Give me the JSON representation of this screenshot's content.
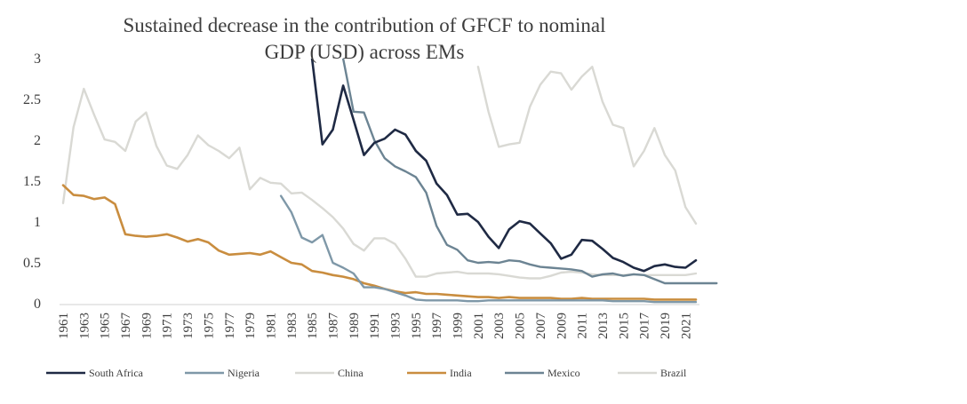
{
  "chart_data": {
    "type": "line",
    "title_line1": "Sustained decrease in the contribution of GFCF to nominal",
    "title_line2": "GDP (USD) across EMs",
    "xlabel": "",
    "ylabel": "",
    "ylim": [
      0,
      3
    ],
    "y_ticks": [
      "0",
      "0.5",
      "1",
      "1.5",
      "2",
      "2.5",
      "3"
    ],
    "x_start": 1961,
    "x_end": 2022,
    "x_tick_labels": [
      "1961",
      "1963",
      "1965",
      "1967",
      "1969",
      "1971",
      "1973",
      "1975",
      "1977",
      "1979",
      "1981",
      "1983",
      "1985",
      "1987",
      "1989",
      "1991",
      "1993",
      "1995",
      "1997",
      "1999",
      "2001",
      "2003",
      "2005",
      "2007",
      "2009",
      "2011",
      "2013",
      "2015",
      "2017",
      "2019",
      "2021"
    ],
    "legend_position": "bottom",
    "series": [
      {
        "name": "South Africa",
        "color": "#1f2a44",
        "width": 2.6,
        "start": 1985,
        "values": [
          3.0,
          1.95,
          2.13,
          2.67,
          2.25,
          1.82,
          1.97,
          2.02,
          2.13,
          2.07,
          1.87,
          1.75,
          1.47,
          1.33,
          1.09,
          1.1,
          1.0,
          0.82,
          0.68,
          0.91,
          1.01,
          0.98,
          0.86,
          0.74,
          0.55,
          0.6,
          0.78,
          0.77,
          0.67,
          0.56,
          0.51,
          0.44,
          0.4,
          0.46,
          0.48,
          0.45,
          0.44,
          0.53
        ]
      },
      {
        "name": "Nigeria",
        "color": "#7f98a8",
        "width": 2.4,
        "start": 1982,
        "values": [
          1.32,
          1.12,
          0.81,
          0.75,
          0.84,
          0.5,
          0.44,
          0.37,
          0.2,
          0.2,
          0.18,
          0.14,
          0.1,
          0.05,
          0.04,
          0.04,
          0.04,
          0.04,
          0.03,
          0.03,
          0.04,
          0.04,
          0.04,
          0.04,
          0.04,
          0.04,
          0.04,
          0.04,
          0.04,
          0.04,
          0.04,
          0.04,
          0.03,
          0.03,
          0.03,
          0.03,
          0.02,
          0.02,
          0.02,
          0.02,
          0.02
        ]
      },
      {
        "name": "China",
        "color": "#d9d9d4",
        "width": 2.4,
        "start": 2001,
        "values": [
          2.9,
          2.35,
          1.92,
          1.95,
          1.97,
          2.41,
          2.68,
          2.84,
          2.82,
          2.62,
          2.78,
          2.9,
          2.47,
          2.19,
          2.15,
          1.68,
          1.87,
          2.15,
          1.82,
          1.63,
          1.18,
          0.98
        ]
      },
      {
        "name": "India",
        "color": "#c98d3f",
        "width": 2.6,
        "start": 1961,
        "values": [
          1.45,
          1.33,
          1.32,
          1.28,
          1.3,
          1.22,
          0.85,
          0.83,
          0.82,
          0.83,
          0.85,
          0.81,
          0.76,
          0.79,
          0.75,
          0.65,
          0.6,
          0.61,
          0.62,
          0.6,
          0.64,
          0.57,
          0.5,
          0.48,
          0.4,
          0.38,
          0.35,
          0.33,
          0.3,
          0.25,
          0.22,
          0.18,
          0.15,
          0.13,
          0.14,
          0.12,
          0.12,
          0.11,
          0.1,
          0.09,
          0.08,
          0.08,
          0.07,
          0.08,
          0.07,
          0.07,
          0.07,
          0.07,
          0.06,
          0.06,
          0.07,
          0.06,
          0.06,
          0.06,
          0.06,
          0.06,
          0.06,
          0.05,
          0.05,
          0.05,
          0.05,
          0.05
        ]
      },
      {
        "name": "Mexico",
        "color": "#6c8493",
        "width": 2.4,
        "start": 1988,
        "values": [
          3.0,
          2.35,
          2.34,
          2.0,
          1.78,
          1.68,
          1.62,
          1.55,
          1.36,
          0.95,
          0.72,
          0.66,
          0.53,
          0.5,
          0.51,
          0.5,
          0.53,
          0.52,
          0.48,
          0.45,
          0.44,
          0.43,
          0.42,
          0.4,
          0.33,
          0.36,
          0.37,
          0.34,
          0.36,
          0.35,
          0.3,
          0.25,
          0.25,
          0.25,
          0.25,
          0.25,
          0.25
        ]
      },
      {
        "name": "Brazil",
        "color": "#d9d9d4",
        "width": 2.4,
        "start": 1961,
        "values": [
          1.23,
          2.16,
          2.63,
          2.31,
          2.01,
          1.98,
          1.87,
          2.23,
          2.34,
          1.93,
          1.69,
          1.65,
          1.82,
          2.06,
          1.94,
          1.87,
          1.78,
          1.91,
          1.4,
          1.54,
          1.48,
          1.47,
          1.35,
          1.36,
          1.27,
          1.17,
          1.06,
          0.92,
          0.73,
          0.65,
          0.8,
          0.8,
          0.73,
          0.55,
          0.33,
          0.33,
          0.37,
          0.38,
          0.39,
          0.37,
          0.37,
          0.37,
          0.36,
          0.34,
          0.32,
          0.31,
          0.31,
          0.34,
          0.38,
          0.39,
          0.38,
          0.36,
          0.35,
          0.35,
          0.35,
          0.36,
          0.35,
          0.35,
          0.35,
          0.35,
          0.35,
          0.37
        ]
      }
    ]
  }
}
